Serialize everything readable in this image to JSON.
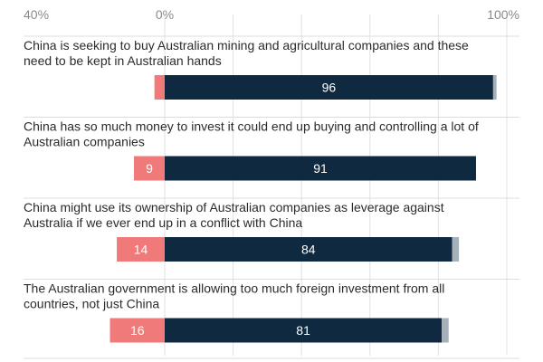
{
  "chart_data": {
    "type": "bar",
    "stacked": true,
    "diverging": true,
    "xlim": [
      -40,
      100
    ],
    "xticks": [
      {
        "value": -40,
        "label": "40%"
      },
      {
        "value": 0,
        "label": "0%"
      },
      {
        "value": 100,
        "label": "100%"
      }
    ],
    "grid": true,
    "colors": {
      "disagree": "#f07a7a",
      "agree": "#0f2a40",
      "other": "#a6b0b8",
      "gridline": "#e2e2e2"
    },
    "series": [
      {
        "key": "disagree",
        "values": [
          3,
          9,
          14,
          16
        ]
      },
      {
        "key": "agree",
        "values": [
          96,
          91,
          84,
          81
        ]
      },
      {
        "key": "other",
        "values": [
          1,
          0,
          2,
          2
        ]
      }
    ],
    "categories": [
      "China is seeking to buy Australian mining and agricultural companies and these need to be kept in Australian hands",
      "China has so much money to invest it could end up buying and controlling a lot of Australian companies",
      "China might use its ownership of Australian companies as leverage against Australia if we ever end up in a conflict with China",
      "The Australian government is allowing too much foreign investment from all countries, not just China"
    ],
    "items": [
      {
        "line1": "China is seeking to buy Australian mining and agricultural companies and these",
        "line2": "need to be kept in Australian hands",
        "disagree_label": "",
        "agree_label": "96"
      },
      {
        "line1": "China has so much money to invest it could end up buying and controlling a lot of",
        "line2": "Australian companies",
        "disagree_label": "9",
        "agree_label": "91"
      },
      {
        "line1": "China might use its ownership of Australian companies as leverage against",
        "line2": "Australia if we ever end up in a conflict with China",
        "disagree_label": "14",
        "agree_label": "84"
      },
      {
        "line1": "The Australian government is allowing too much foreign investment from all",
        "line2": "countries, not just China",
        "disagree_label": "16",
        "agree_label": "81"
      }
    ]
  }
}
